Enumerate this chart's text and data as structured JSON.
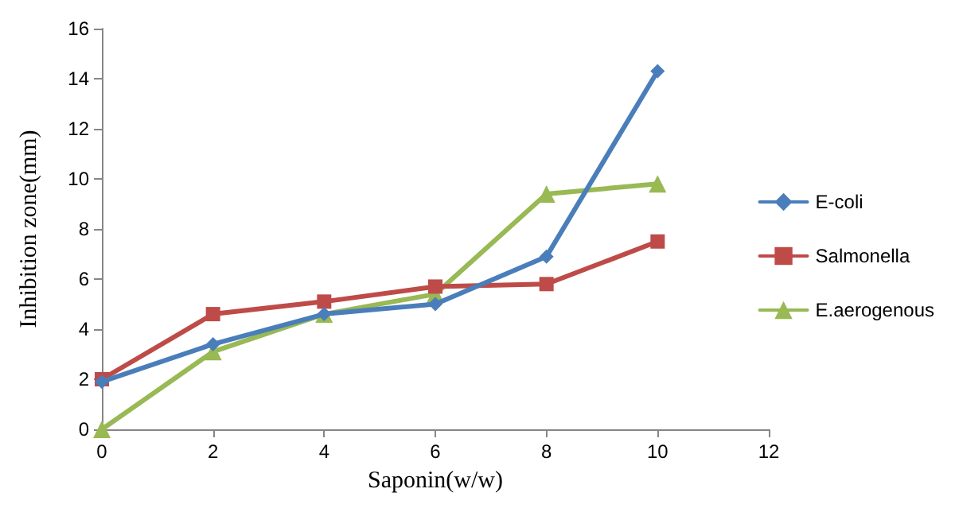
{
  "chart_data": {
    "type": "line",
    "xlabel": "Saponin(w/w)",
    "ylabel": "Inhibition zone(mm)",
    "x": [
      0,
      2,
      4,
      6,
      8,
      10
    ],
    "series": [
      {
        "name": "E-coli",
        "color": "#4a7ebb",
        "marker": "diamond",
        "values": [
          1.9,
          3.4,
          4.6,
          5.0,
          6.9,
          14.3
        ]
      },
      {
        "name": "Salmonella",
        "color": "#be4b48",
        "marker": "square",
        "values": [
          2.0,
          4.6,
          5.1,
          5.7,
          5.8,
          7.5
        ]
      },
      {
        "name": "E.aerogenous",
        "color": "#98b954",
        "marker": "triangle",
        "values": [
          0,
          3.1,
          4.6,
          5.4,
          9.4,
          9.8
        ]
      }
    ],
    "xlim": [
      0,
      12
    ],
    "xticks": [
      0,
      2,
      4,
      6,
      8,
      10,
      12
    ],
    "ylim": [
      0,
      16
    ],
    "yticks": [
      0,
      2,
      4,
      6,
      8,
      10,
      12,
      14,
      16
    ],
    "grid": false,
    "legend": "right",
    "line_style": "solid"
  }
}
